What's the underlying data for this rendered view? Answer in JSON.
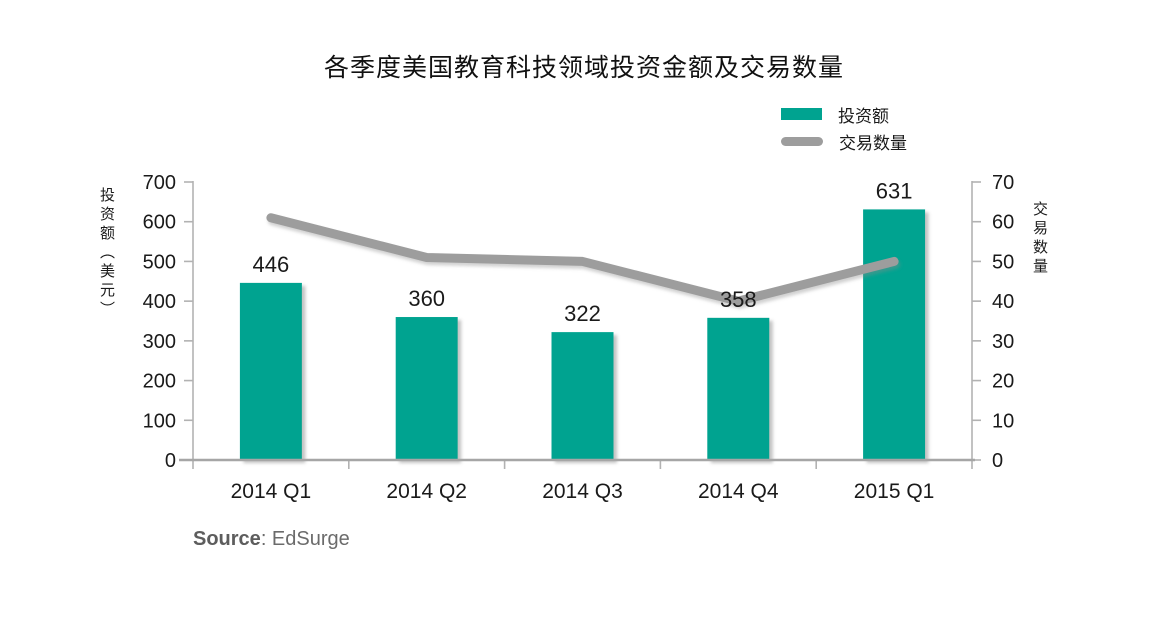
{
  "title": "各季度美国教育科技领域投资金额及交易数量",
  "source": {
    "label": "Source",
    "rest": ": EdSurge"
  },
  "colors": {
    "bar": "#00a390",
    "line": "#9d9d9d",
    "axis": "#b2b2b2",
    "baseline": "#a6a6a6",
    "text": "#1a1a1a",
    "source_text": "#6b6b6b"
  },
  "chart_data": {
    "type": "combo",
    "categories": [
      "2014 Q1",
      "2014 Q2",
      "2014 Q3",
      "2014 Q4",
      "2015 Q1"
    ],
    "series": [
      {
        "name": "投资额",
        "type": "bar",
        "axis": "left",
        "values": [
          446,
          360,
          322,
          358,
          631
        ]
      },
      {
        "name": "交易数量",
        "type": "line",
        "axis": "right",
        "values": [
          61,
          51,
          50,
          40,
          50
        ]
      }
    ],
    "left_axis": {
      "title": "投资额（美元）",
      "min": 0,
      "max": 700,
      "step": 100,
      "ticks": [
        0,
        100,
        200,
        300,
        400,
        500,
        600,
        700
      ]
    },
    "right_axis": {
      "title": "交易数量",
      "min": 0,
      "max": 70,
      "step": 10,
      "ticks": [
        0,
        10,
        20,
        30,
        40,
        50,
        60,
        70
      ]
    },
    "legend_position": "top-right",
    "grid": false,
    "data_labels_shown": true
  }
}
